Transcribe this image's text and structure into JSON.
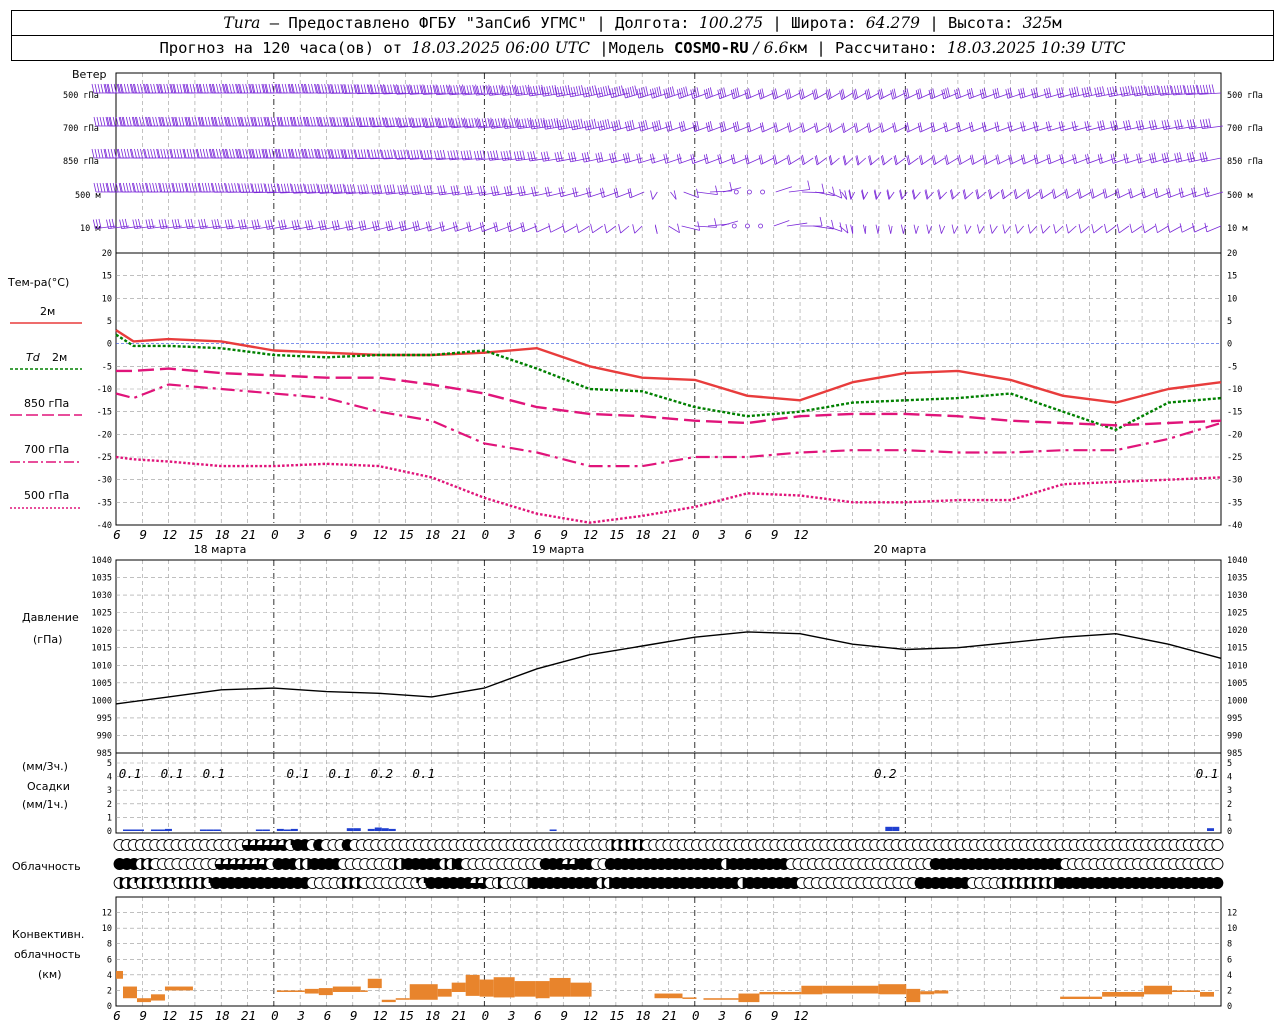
{
  "header": {
    "station": "Tura",
    "provider": " — Предоставлено ФГБУ \"ЗапСиб УГМС\" | Долгота: ",
    "lon": "100.275",
    "lat_label": " | Широта: ",
    "lat": "64.279",
    "alt_label": " | Высота: ",
    "alt": "325",
    "alt_unit": "м",
    "forecast": "Прогноз на 120 часа(ов) от ",
    "start": "18.03.2025 06:00 UTC",
    "model_label": " |Модель ",
    "model": "COSMO-RU",
    "res": " / 6.6",
    "res_unit": "км",
    "calc_label": " | Рассчитано: ",
    "calc": "18.03.2025 10:39 UTC"
  },
  "wind_labels": {
    "title": "Ветер",
    "l500": "500 гПа",
    "l700": "700 гПа",
    "l850": "850 гПа",
    "l500m": "500 м",
    "l10m": "10  м"
  },
  "temp_labels": {
    "title": "Тем-ра(°С)",
    "t2": "2м",
    "td": "Td",
    "td2": "2м",
    "t850": "850 гПа",
    "t700": "700 гПа",
    "t500": "500 гПа"
  },
  "pres_labels": {
    "title": "Давление",
    "unit": "(гПа)"
  },
  "precip_labels": {
    "u3": "(мм/3ч.)",
    "title": "Осадки",
    "u1": "(мм/1ч.)"
  },
  "cloud_label": "Облачность",
  "conv_labels": {
    "l1": "Конвективн.",
    "l2": "облачность",
    "l3": "(км)"
  },
  "days": [
    "18 марта",
    "19 марта",
    "20 марта"
  ],
  "hour_ticks": [
    "6",
    "9",
    "12",
    "15",
    "18",
    "21",
    "0",
    "3",
    "6",
    "9",
    "12",
    "15",
    "18",
    "21",
    "0",
    "3",
    "6",
    "9",
    "12",
    "15",
    "18",
    "21",
    "0",
    "3",
    "6",
    "9",
    "12"
  ],
  "colors": {
    "t2": "#e83c3c",
    "td": "#008000",
    "level": "#e0147a",
    "wind": "#7a28d8",
    "pres": "#000000",
    "precip": "#1f3fd0",
    "conv": "#e8842c",
    "grid": "#999999"
  },
  "chart_data": [
    {
      "type": "line",
      "title": "Тем-ра(°С)",
      "ylim": [
        -40,
        20
      ],
      "y_ticks": [
        "20",
        "15",
        "10",
        "5",
        "0",
        "-5",
        "-10",
        "-15",
        "-20",
        "-25",
        "-30",
        "-35",
        "-40"
      ],
      "x": [
        0,
        2,
        6,
        12,
        18,
        24,
        30,
        36,
        42,
        48,
        54,
        60,
        66,
        72,
        78,
        84,
        90,
        96,
        102,
        108,
        114,
        120,
        126
      ],
      "series": [
        {
          "name": "2м",
          "values": [
            3,
            0.5,
            1,
            0.5,
            -1.5,
            -2,
            -2.5,
            -2.5,
            -2,
            -1,
            -5,
            -7.5,
            -8,
            -11.5,
            -12.5,
            -8.5,
            -6.5,
            -6,
            -8,
            -11.5,
            -13,
            -10,
            -8.5
          ]
        },
        {
          "name": "Td 2м",
          "values": [
            2,
            -0.5,
            -0.5,
            -1,
            -2.5,
            -3,
            -2.5,
            -2.5,
            -1.5,
            -5.5,
            -10,
            -10.5,
            -14,
            -16,
            -15,
            -13,
            -12.5,
            -12,
            -11,
            -15,
            -19,
            -13,
            -12
          ]
        },
        {
          "name": "850 гПа",
          "values": [
            -6,
            -6,
            -5.5,
            -6.5,
            -7,
            -7.5,
            -7.5,
            -9,
            -11,
            -14,
            -15.5,
            -16,
            -17,
            -17.5,
            -16,
            -15.5,
            -15.5,
            -16,
            -17,
            -17.5,
            -18,
            -17.5,
            -17
          ]
        },
        {
          "name": "700 гПа",
          "values": [
            -11,
            -12,
            -9,
            -10,
            -11,
            -12,
            -15,
            -17,
            -22,
            -24,
            -27,
            -27,
            -25,
            -25,
            -24,
            -23.5,
            -23.5,
            -24,
            -24,
            -23.5,
            -23.5,
            -21,
            -17.5
          ]
        },
        {
          "name": "500 гПа",
          "values": [
            -25,
            -25.5,
            -26,
            -27,
            -27,
            -26.5,
            -27,
            -29.5,
            -34,
            -37.5,
            -39.5,
            -38,
            -36,
            -33,
            -33.5,
            -35,
            -35,
            -34.5,
            -34.5,
            -31,
            -30.5,
            -30,
            -29.5
          ]
        }
      ]
    },
    {
      "type": "line",
      "title": "Давление",
      "unit": "(гПа)",
      "ylim": [
        985,
        1040
      ],
      "y_ticks": [
        "1040",
        "1035",
        "1030",
        "1025",
        "1020",
        "1015",
        "1010",
        "1005",
        "1000",
        "995",
        "990",
        "985"
      ],
      "x": [
        0,
        6,
        12,
        18,
        24,
        30,
        36,
        42,
        48,
        54,
        60,
        66,
        72,
        78,
        84,
        90,
        96,
        102,
        108,
        114,
        120,
        126
      ],
      "values": [
        999,
        1001,
        1003,
        1003.5,
        1002.5,
        1002,
        1001,
        1003.5,
        1009,
        1013,
        1015.5,
        1018,
        1019.5,
        1019,
        1016,
        1014.5,
        1015,
        1016.5,
        1018,
        1019,
        1016,
        1012
      ]
    },
    {
      "type": "bar",
      "title": "Осадки",
      "ylim": [
        0,
        5
      ],
      "y_ticks": [
        "5",
        "4",
        "3",
        "2",
        "1",
        "0"
      ],
      "amount_labels": [
        "0.1",
        "0.1",
        "0.1",
        "0.1",
        "0.1",
        "0.2",
        "0.1",
        "0.2",
        "0.1"
      ],
      "label_x": [
        2,
        8,
        14,
        26,
        32,
        38,
        44,
        110,
        156
      ],
      "bars_x": [
        1,
        2,
        3,
        5,
        6,
        7,
        12,
        13,
        14,
        20,
        21,
        23,
        24,
        25,
        33,
        34,
        36,
        37,
        38,
        39,
        62,
        110,
        111,
        156
      ],
      "bars_mm": [
        0.1,
        0.05,
        0.1,
        0.1,
        0.1,
        0.15,
        0.05,
        0.1,
        0.1,
        0.1,
        0.1,
        0.15,
        0.1,
        0.15,
        0.2,
        0.2,
        0.15,
        0.25,
        0.2,
        0.15,
        0.1,
        0.3,
        0.3,
        0.2
      ]
    },
    {
      "type": "bar",
      "title": "Конвективн. облачность",
      "unit": "(км)",
      "ylim": [
        0,
        13
      ],
      "y_ticks": [
        "12",
        "10",
        "8",
        "6",
        "4",
        "2",
        "0"
      ],
      "segments": [
        [
          0,
          1,
          3.5,
          4.5
        ],
        [
          1,
          3,
          1,
          2.5
        ],
        [
          3,
          5,
          0.5,
          1
        ],
        [
          5,
          7,
          0.7,
          1.5
        ],
        [
          7,
          11,
          2,
          2.5
        ],
        [
          23,
          27,
          1.8,
          2
        ],
        [
          27,
          29,
          1.6,
          2.2
        ],
        [
          29,
          31,
          1.4,
          2.3
        ],
        [
          31,
          35,
          1.8,
          2.5
        ],
        [
          35,
          36,
          2,
          2
        ],
        [
          36,
          38,
          2.3,
          3.5
        ],
        [
          38,
          40,
          0.5,
          0.8
        ],
        [
          40,
          42,
          0.8,
          1
        ],
        [
          42,
          46,
          0.8,
          2.8
        ],
        [
          46,
          48,
          1.2,
          2.2
        ],
        [
          48,
          50,
          1.8,
          3
        ],
        [
          50,
          52,
          1.3,
          4
        ],
        [
          52,
          54,
          1.2,
          3.4
        ],
        [
          54,
          57,
          1.1,
          3.7
        ],
        [
          57,
          60,
          1.2,
          3.2
        ],
        [
          60,
          62,
          1,
          3.2
        ],
        [
          62,
          65,
          1.2,
          3.6
        ],
        [
          65,
          68,
          1.2,
          3
        ],
        [
          77,
          81,
          1,
          1.6
        ],
        [
          81,
          83,
          1,
          1.1
        ],
        [
          84,
          89,
          0.8,
          1
        ],
        [
          89,
          92,
          0.5,
          1.6
        ],
        [
          92,
          98,
          1.5,
          1.8
        ],
        [
          98,
          101,
          1.5,
          2.6
        ],
        [
          101,
          109,
          1.6,
          2.6
        ],
        [
          109,
          113,
          1.5,
          2.8
        ],
        [
          113,
          115,
          0.5,
          2.2
        ],
        [
          115,
          117,
          1.5,
          1.9
        ],
        [
          117,
          119,
          1.6,
          2
        ],
        [
          135,
          141,
          0.9,
          1.2
        ],
        [
          141,
          147,
          1.2,
          1.8
        ],
        [
          147,
          151,
          1.5,
          2.6
        ],
        [
          151,
          155,
          1.8,
          2
        ],
        [
          155,
          157,
          1.2,
          1.8
        ]
      ]
    },
    {
      "type": "table",
      "title": "Облачность",
      "rows": [
        "000000000000000000ppppppqff0f000f000000000000000000000000000000000000hhhhh000000000000000000000000000000000000000000000000000000000000000000000000000000000",
        "fffhh000000000ppppppp0fffhhffff0000000hhfffffhhf00000000000fffppff00ffffffffffffffffhffffffff00000000000000000000ffffffffffffffffff0000000000000000000000",
        "hhqhhqhqhhhhqfffffffffffff0000hhh0000000qqffffffpp0h000hfffffffffhhfffffffffffffffffhfffffff0000000000000000fffffff0000hhhhhhhhffffffffffffffffffffff"
      ]
    },
    {
      "type": "table",
      "title": "Ветер",
      "levels": [
        "500 гПа",
        "700 гПа",
        "850 гПа",
        "500 м",
        "10  м"
      ],
      "x": [
        0,
        12,
        24,
        36,
        48,
        60,
        72,
        84,
        96,
        108,
        120,
        126
      ],
      "speed_ms": [
        [
          28,
          30,
          30,
          26,
          30,
          22,
          14,
          10,
          14,
          12,
          20,
          22
        ],
        [
          24,
          26,
          26,
          22,
          24,
          16,
          10,
          8,
          8,
          8,
          12,
          14
        ],
        [
          20,
          22,
          24,
          18,
          14,
          10,
          6,
          6,
          6,
          8,
          10,
          10
        ],
        [
          18,
          20,
          20,
          14,
          10,
          6,
          0,
          6,
          6,
          6,
          8,
          8
        ],
        [
          10,
          12,
          12,
          10,
          6,
          4,
          0,
          4,
          4,
          4,
          4,
          4
        ]
      ],
      "dir_deg": [
        [
          270,
          270,
          270,
          260,
          250,
          230,
          220,
          210,
          220,
          230,
          250,
          260
        ],
        [
          270,
          270,
          270,
          260,
          250,
          230,
          220,
          210,
          220,
          230,
          240,
          250
        ],
        [
          270,
          270,
          270,
          260,
          250,
          230,
          220,
          200,
          210,
          220,
          230,
          240
        ],
        [
          270,
          270,
          260,
          250,
          240,
          220,
          0,
          190,
          200,
          210,
          220,
          230
        ],
        [
          250,
          250,
          240,
          230,
          220,
          200,
          0,
          180,
          190,
          200,
          210,
          220
        ]
      ]
    }
  ]
}
